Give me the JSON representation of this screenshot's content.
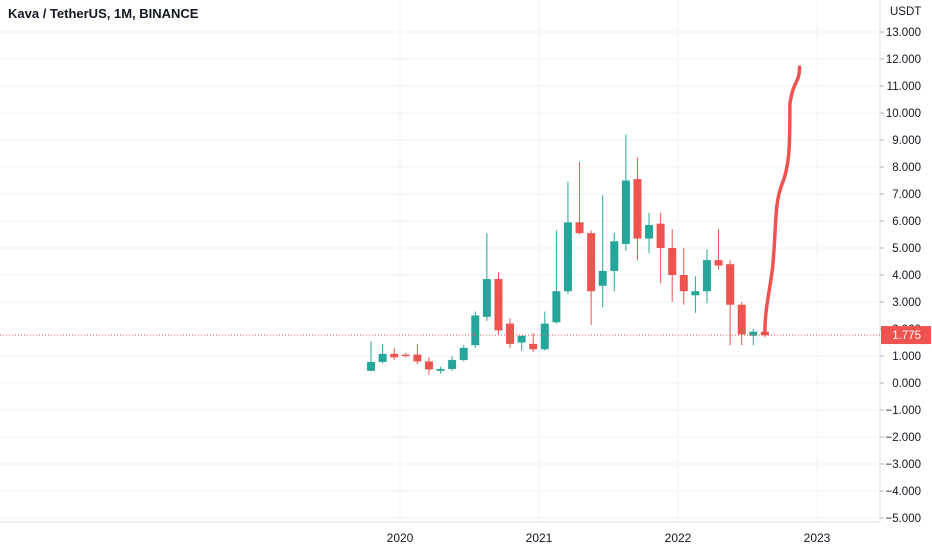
{
  "chart_data": {
    "type": "candlestick",
    "title": "Kava / TetherUS, 1M, BINANCE",
    "y_unit": "USDT",
    "ylim": [
      -5.0,
      13.0
    ],
    "y_ticks": [
      "13.000",
      "12.000",
      "11.000",
      "10.000",
      "9.000",
      "8.000",
      "7.000",
      "6.000",
      "5.000",
      "4.000",
      "3.000",
      "2.000",
      "1.000",
      "0.000",
      "−1.000",
      "−2.000",
      "−3.000",
      "−4.000",
      "−5.000"
    ],
    "x_ticks": [
      "2020",
      "2021",
      "2022",
      "2023"
    ],
    "last_price": "1.775",
    "colors": {
      "up": "#26a69a",
      "down": "#ef5350",
      "price_line": "#ef5350"
    },
    "candles": [
      {
        "date": "2019-10",
        "open": 0.45,
        "high": 1.55,
        "low": 0.45,
        "close": 0.78
      },
      {
        "date": "2019-11",
        "open": 0.78,
        "high": 1.45,
        "low": 0.72,
        "close": 1.08
      },
      {
        "date": "2019-12",
        "open": 1.08,
        "high": 1.3,
        "low": 0.85,
        "close": 0.95
      },
      {
        "date": "2020-01",
        "open": 1.05,
        "high": 1.12,
        "low": 0.95,
        "close": 1.0
      },
      {
        "date": "2020-02",
        "open": 1.05,
        "high": 1.45,
        "low": 0.7,
        "close": 0.8
      },
      {
        "date": "2020-03",
        "open": 0.8,
        "high": 0.95,
        "low": 0.3,
        "close": 0.5
      },
      {
        "date": "2020-04",
        "open": 0.45,
        "high": 0.6,
        "low": 0.35,
        "close": 0.52
      },
      {
        "date": "2020-05",
        "open": 0.52,
        "high": 1.0,
        "low": 0.45,
        "close": 0.85
      },
      {
        "date": "2020-06",
        "open": 0.85,
        "high": 1.4,
        "low": 0.8,
        "close": 1.3
      },
      {
        "date": "2020-07",
        "open": 1.4,
        "high": 2.65,
        "low": 1.3,
        "close": 2.5
      },
      {
        "date": "2020-08",
        "open": 2.45,
        "high": 5.55,
        "low": 2.3,
        "close": 3.85
      },
      {
        "date": "2020-09",
        "open": 3.85,
        "high": 4.1,
        "low": 1.8,
        "close": 1.95
      },
      {
        "date": "2020-10",
        "open": 2.2,
        "high": 2.4,
        "low": 1.3,
        "close": 1.45
      },
      {
        "date": "2020-11",
        "open": 1.5,
        "high": 1.7,
        "low": 1.2,
        "close": 1.75
      },
      {
        "date": "2020-12",
        "open": 1.45,
        "high": 1.85,
        "low": 1.15,
        "close": 1.25
      },
      {
        "date": "2021-01",
        "open": 1.25,
        "high": 2.65,
        "low": 1.2,
        "close": 2.2
      },
      {
        "date": "2021-02",
        "open": 2.25,
        "high": 5.65,
        "low": 2.2,
        "close": 3.4
      },
      {
        "date": "2021-03",
        "open": 3.4,
        "high": 7.45,
        "low": 3.3,
        "close": 5.95
      },
      {
        "date": "2021-04",
        "open": 5.95,
        "high": 8.2,
        "low": 5.5,
        "close": 5.55
      },
      {
        "date": "2021-05",
        "open": 5.55,
        "high": 5.65,
        "low": 2.15,
        "close": 3.4
      },
      {
        "date": "2021-06",
        "open": 3.6,
        "high": 6.95,
        "low": 2.8,
        "close": 4.15
      },
      {
        "date": "2021-07",
        "open": 4.15,
        "high": 5.55,
        "low": 3.4,
        "close": 5.25
      },
      {
        "date": "2021-08",
        "open": 5.15,
        "high": 9.2,
        "low": 4.9,
        "close": 7.5
      },
      {
        "date": "2021-09",
        "open": 7.55,
        "high": 8.35,
        "low": 4.55,
        "close": 5.35
      },
      {
        "date": "2021-10",
        "open": 5.35,
        "high": 6.3,
        "low": 4.8,
        "close": 5.85
      },
      {
        "date": "2021-11",
        "open": 5.9,
        "high": 6.3,
        "low": 3.7,
        "close": 5.0
      },
      {
        "date": "2021-12",
        "open": 5.0,
        "high": 5.7,
        "low": 3.0,
        "close": 4.0
      },
      {
        "date": "2022-01",
        "open": 4.0,
        "high": 5.0,
        "low": 2.9,
        "close": 3.4
      },
      {
        "date": "2022-02",
        "open": 3.25,
        "high": 3.95,
        "low": 2.6,
        "close": 3.4
      },
      {
        "date": "2022-03",
        "open": 3.4,
        "high": 4.95,
        "low": 2.95,
        "close": 4.55
      },
      {
        "date": "2022-04",
        "open": 4.55,
        "high": 5.7,
        "low": 4.2,
        "close": 4.35
      },
      {
        "date": "2022-05",
        "open": 4.4,
        "high": 4.55,
        "low": 1.4,
        "close": 2.9
      },
      {
        "date": "2022-06",
        "open": 2.9,
        "high": 3.0,
        "low": 1.4,
        "close": 1.8
      },
      {
        "date": "2022-07",
        "open": 1.75,
        "high": 2.0,
        "low": 1.4,
        "close": 1.9
      },
      {
        "date": "2022-08",
        "open": 1.9,
        "high": 2.0,
        "low": 1.7,
        "close": 1.77
      }
    ],
    "projection": {
      "start": "2022-08",
      "end": "2022-11",
      "low": 1.9,
      "high": 11.7
    }
  }
}
